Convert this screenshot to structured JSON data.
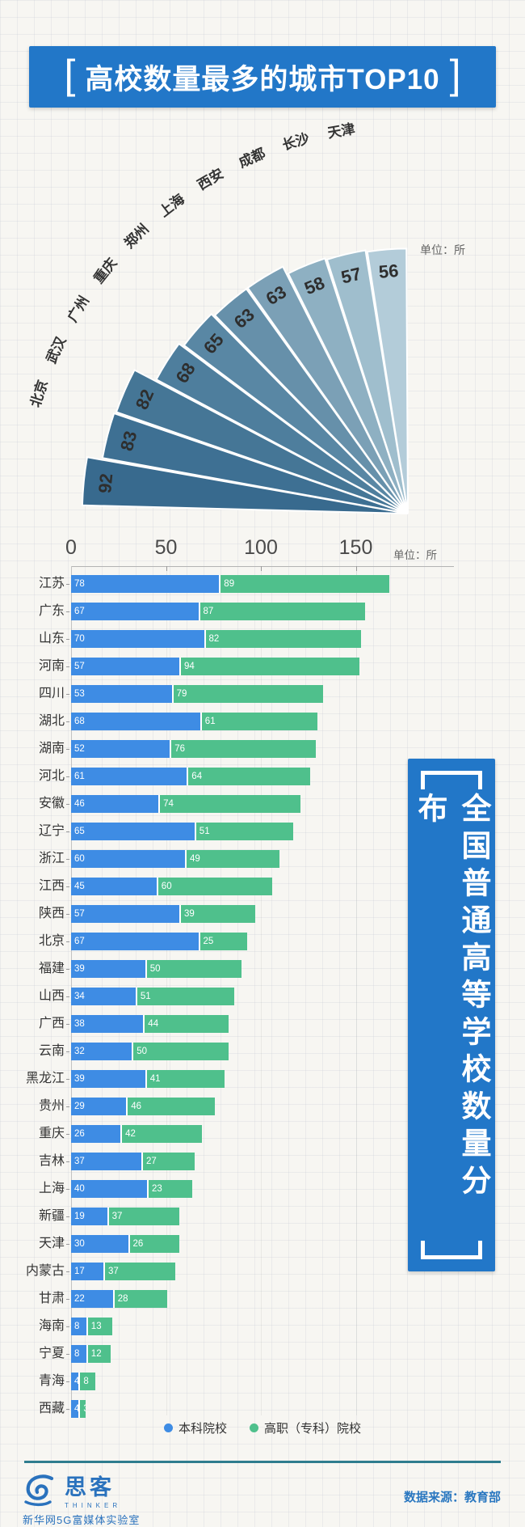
{
  "page": {
    "background": "#f7f6f2"
  },
  "header": {
    "bracket_left": "[",
    "bracket_right": "]",
    "title": "高校数量最多的城市TOP10",
    "banner_color": "#2277c8"
  },
  "side_banner": {
    "text": "全国普通高等学校数量分布",
    "color": "#2277c8"
  },
  "footer": {
    "logo_cn": "思客",
    "logo_en": "THINKER",
    "logo_sub": "新华网5G富媒体实验室",
    "source": "数据来源：教育部"
  },
  "chart_data": [
    {
      "type": "bar",
      "subtype": "radial-fan",
      "title": "高校数量最多的城市TOP10",
      "unit_label": "单位：所",
      "categories": [
        "北京",
        "武汉",
        "广州",
        "重庆",
        "郑州",
        "上海",
        "西安",
        "成都",
        "长沙",
        "天津"
      ],
      "values": [
        92,
        83,
        82,
        68,
        65,
        63,
        63,
        58,
        57,
        56
      ],
      "palette": [
        "#386a8e",
        "#3e7093",
        "#457696",
        "#4e7e9d",
        "#5987a4",
        "#6690aa",
        "#7ba0b6",
        "#8eb0c2",
        "#9fbecd",
        "#b3ccd9"
      ]
    },
    {
      "type": "bar",
      "subtype": "horizontal-stacked",
      "unit_label": "单位：所",
      "x_ticks": [
        0,
        50,
        100,
        150
      ],
      "xlim": [
        0,
        170
      ],
      "colors": {
        "benke": "#3e8ce4",
        "gaozhi": "#4fc08c"
      },
      "categories": [
        "江苏",
        "广东",
        "山东",
        "河南",
        "四川",
        "湖北",
        "湖南",
        "河北",
        "安徽",
        "辽宁",
        "浙江",
        "江西",
        "陕西",
        "北京",
        "福建",
        "山西",
        "广西",
        "云南",
        "黑龙江",
        "贵州",
        "重庆",
        "吉林",
        "上海",
        "新疆",
        "天津",
        "内蒙古",
        "甘肃",
        "海南",
        "宁夏",
        "青海",
        "西藏"
      ],
      "series": [
        {
          "name": "本科院校",
          "values": [
            78,
            67,
            70,
            57,
            53,
            68,
            52,
            61,
            46,
            65,
            60,
            45,
            57,
            67,
            39,
            34,
            38,
            32,
            39,
            29,
            26,
            37,
            40,
            19,
            30,
            17,
            22,
            8,
            8,
            4,
            4
          ]
        },
        {
          "name": "高职（专科）院校",
          "values": [
            89,
            87,
            82,
            94,
            79,
            61,
            76,
            64,
            74,
            51,
            49,
            60,
            39,
            25,
            50,
            51,
            44,
            50,
            41,
            46,
            42,
            27,
            23,
            37,
            26,
            37,
            28,
            13,
            12,
            8,
            3
          ]
        }
      ]
    }
  ]
}
